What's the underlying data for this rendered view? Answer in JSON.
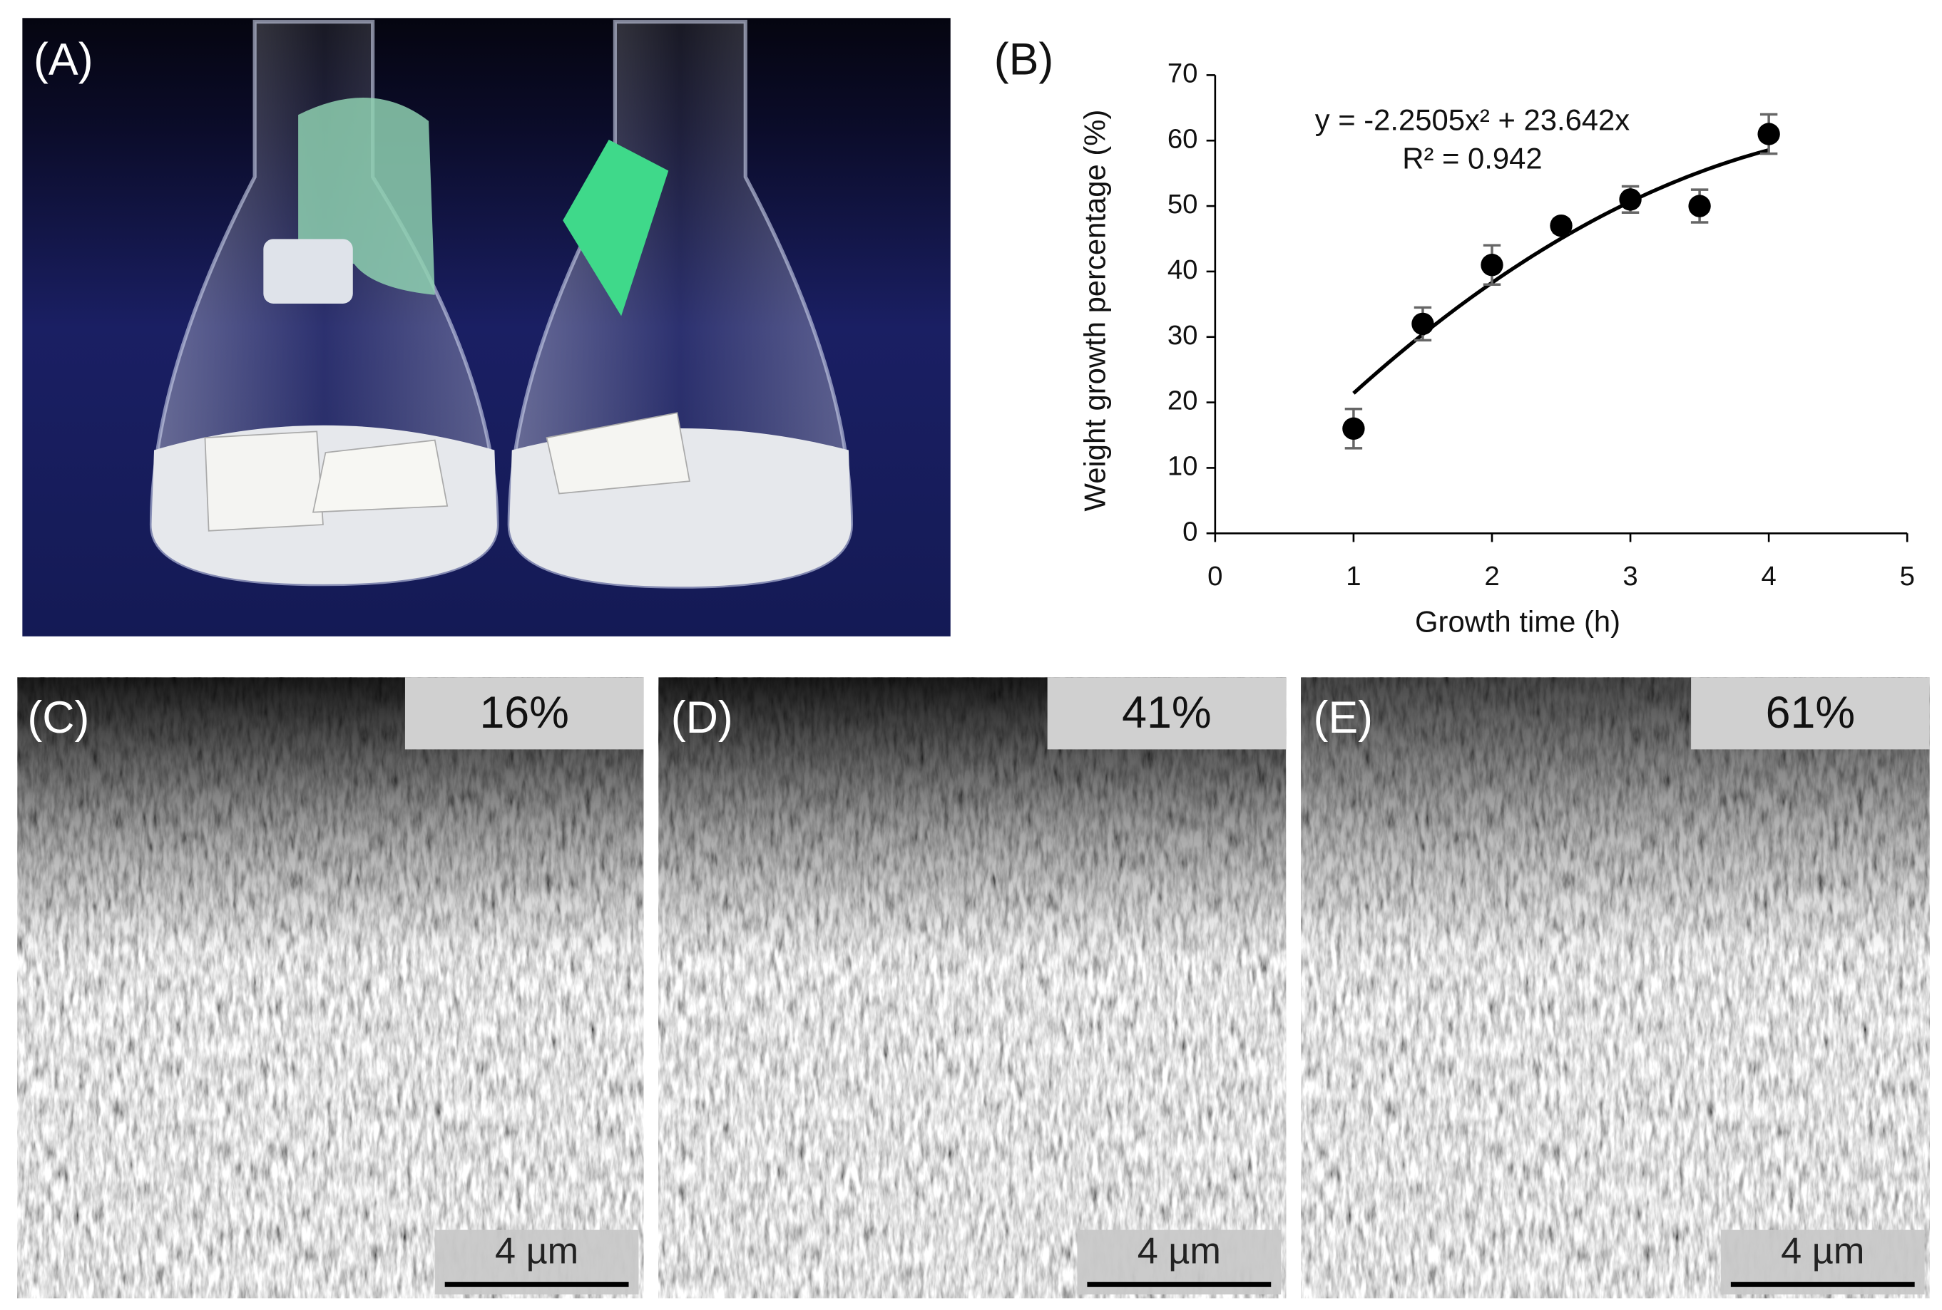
{
  "panel_labels": [
    "(A)",
    "(B)",
    "(C)",
    "(D)",
    "(E)"
  ],
  "sem_images": [
    {
      "percentage": "16%",
      "scale_bar": "4 µm"
    },
    {
      "percentage": "41%",
      "scale_bar": "4 µm"
    },
    {
      "percentage": "61%",
      "scale_bar": "4 µm"
    }
  ],
  "chart_data": {
    "type": "scatter",
    "x_label": "Growth time (h)",
    "y_label": "Weight growth percentage (%)",
    "x": [
      1,
      1.5,
      2,
      2.5,
      3,
      3.5,
      4
    ],
    "series": [
      {
        "color": "#000000",
        "values": [
          16,
          32,
          41,
          47,
          51,
          50,
          61
        ],
        "errors": [
          3,
          2.5,
          3,
          1,
          2,
          2.5,
          3
        ]
      }
    ],
    "xlim": [
      0,
      5
    ],
    "ylim": [
      0,
      70
    ],
    "xticks": [
      0,
      1,
      2,
      3,
      4,
      5
    ],
    "yticks": [
      0,
      10,
      20,
      30,
      40,
      50,
      60,
      70
    ],
    "annotations": [
      "y = -2.2505x² + 23.642x",
      "R² = 0.942"
    ],
    "trendline": {
      "type": "polynomial",
      "coefficients": [
        -2.2505,
        23.642
      ],
      "color": "#000000"
    }
  }
}
